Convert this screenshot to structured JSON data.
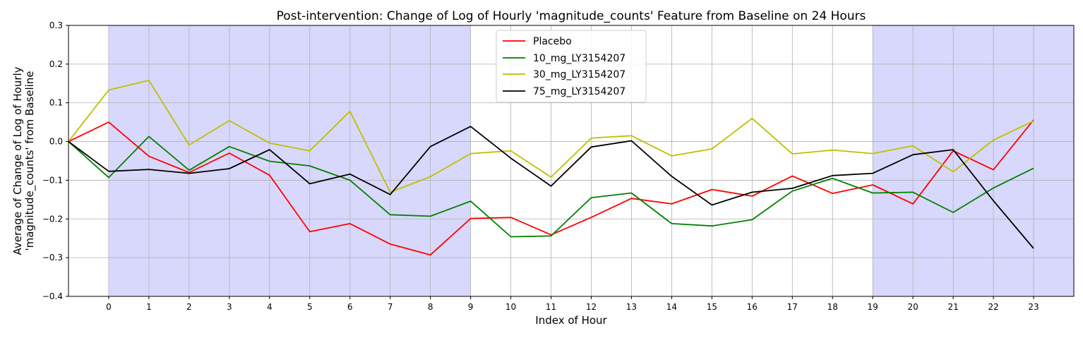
{
  "chart_data": {
    "type": "line",
    "title": "Post-intervention: Change of Log of Hourly 'magnitude_counts' Feature from Baseline on 24 Hours",
    "xlabel": "Index of Hour",
    "ylabel_lines": [
      "Average of Change of Log of Hourly",
      "'magnitude_counts' from Baseline"
    ],
    "xlim": [
      -1,
      24
    ],
    "ylim": [
      -0.4,
      0.3
    ],
    "x": [
      -1,
      0,
      1,
      2,
      3,
      4,
      5,
      6,
      7,
      8,
      9,
      10,
      11,
      12,
      13,
      14,
      15,
      16,
      17,
      18,
      19,
      20,
      21,
      22,
      23
    ],
    "xticks": [
      0,
      1,
      2,
      3,
      4,
      5,
      6,
      7,
      8,
      9,
      10,
      11,
      12,
      13,
      14,
      15,
      16,
      17,
      18,
      19,
      20,
      21,
      22,
      23
    ],
    "xtick_labels": [
      "0",
      "1",
      "2",
      "3",
      "4",
      "5",
      "6",
      "7",
      "8",
      "9",
      "10",
      "11",
      "12",
      "13",
      "14",
      "15",
      "16",
      "17",
      "18",
      "19",
      "20",
      "21",
      "22",
      "23"
    ],
    "yticks": [
      -0.4,
      -0.3,
      -0.2,
      -0.1,
      0.0,
      0.1,
      0.2,
      0.3
    ],
    "ytick_labels": [
      "−0.4",
      "−0.3",
      "−0.2",
      "−0.1",
      "0.0",
      "0.1",
      "0.2",
      "0.3"
    ],
    "grid": true,
    "legend_position": "top-center",
    "shaded_ranges": [
      [
        0,
        9
      ],
      [
        19,
        24
      ]
    ],
    "shade_color": "#d8d8fc",
    "series": [
      {
        "name": "Placebo",
        "color": "#ff0000",
        "values": [
          0.0,
          0.05,
          -0.038,
          -0.08,
          -0.03,
          -0.087,
          -0.233,
          -0.212,
          -0.265,
          -0.293,
          -0.199,
          -0.196,
          -0.241,
          -0.196,
          -0.147,
          -0.161,
          -0.124,
          -0.141,
          -0.089,
          -0.134,
          -0.112,
          -0.161,
          -0.024,
          -0.073,
          0.056
        ]
      },
      {
        "name": "10_mg_LY3154207",
        "color": "#008000",
        "values": [
          0.0,
          -0.093,
          0.013,
          -0.074,
          -0.013,
          -0.051,
          -0.063,
          -0.1,
          -0.189,
          -0.193,
          -0.154,
          -0.246,
          -0.244,
          -0.145,
          -0.133,
          -0.212,
          -0.218,
          -0.202,
          -0.128,
          -0.095,
          -0.133,
          -0.131,
          -0.183,
          -0.12,
          -0.069
        ]
      },
      {
        "name": "30_mg_LY3154207",
        "color": "#bfbf00",
        "values": [
          0.0,
          0.133,
          0.158,
          -0.009,
          0.054,
          -0.004,
          -0.024,
          0.078,
          -0.131,
          -0.091,
          -0.031,
          -0.024,
          -0.092,
          0.009,
          0.015,
          -0.037,
          -0.019,
          0.06,
          -0.032,
          -0.022,
          -0.031,
          -0.011,
          -0.078,
          0.004,
          0.053
        ]
      },
      {
        "name": "75_mg_LY3154207",
        "color": "#000000",
        "values": [
          0.0,
          -0.077,
          -0.072,
          -0.082,
          -0.07,
          -0.021,
          -0.109,
          -0.084,
          -0.137,
          -0.013,
          0.039,
          -0.043,
          -0.115,
          -0.014,
          0.002,
          -0.09,
          -0.164,
          -0.131,
          -0.121,
          -0.088,
          -0.082,
          -0.034,
          -0.021,
          -0.153,
          -0.276
        ]
      }
    ]
  }
}
